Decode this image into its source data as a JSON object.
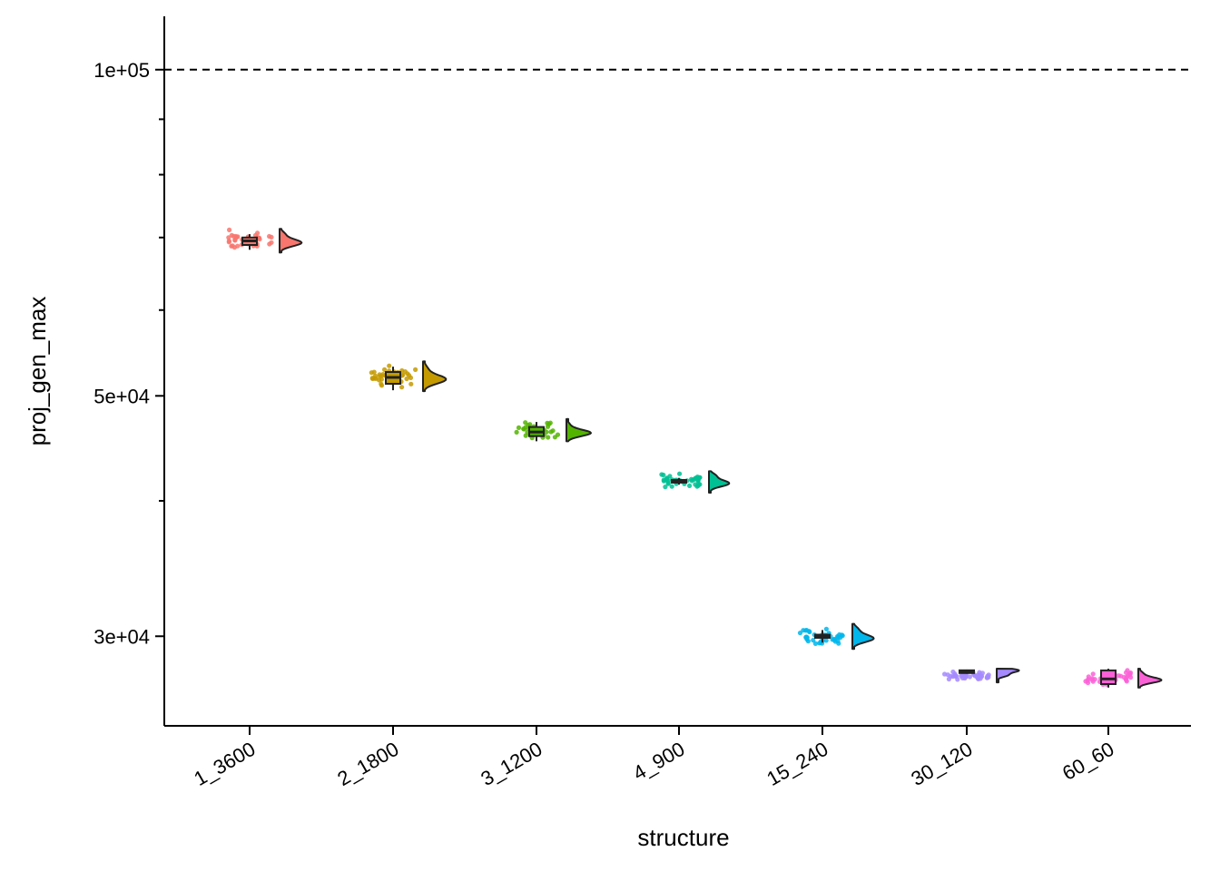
{
  "chart_data": {
    "type": "raincloud",
    "xlabel": "structure",
    "ylabel": "proj_gen_max",
    "y_scale": "log",
    "ylim": [
      24800,
      112000
    ],
    "y_ticks": [
      {
        "value": 30000,
        "label": "3e+04"
      },
      {
        "value": 50000,
        "label": "5e+04"
      },
      {
        "value": 100000,
        "label": "1e+05"
      }
    ],
    "reference_line": {
      "value": 100000,
      "style": "dashed",
      "color": "#000000"
    },
    "grid": false,
    "legend": "none",
    "categories": [
      "1_3600",
      "2_1800",
      "3_1200",
      "4_900",
      "15_240",
      "30_120",
      "60_60"
    ],
    "colors": [
      "#F8766D",
      "#C49A00",
      "#53B400",
      "#00C094",
      "#00B6EB",
      "#A58AFF",
      "#FB61D7"
    ],
    "series": [
      {
        "category": "1_3600",
        "center": 69500,
        "q1": 68900,
        "q3": 70000,
        "whisker_low": 68200,
        "whisker_high": 70500,
        "spread_low": 67800,
        "spread_high": 71300
      },
      {
        "category": "2_1800",
        "center": 52000,
        "q1": 51300,
        "q3": 52600,
        "whisker_low": 50600,
        "whisker_high": 53200,
        "spread_low": 50500,
        "spread_high": 53800
      },
      {
        "category": "3_1200",
        "center": 46300,
        "q1": 45900,
        "q3": 46800,
        "whisker_low": 45400,
        "whisker_high": 47300,
        "spread_low": 45400,
        "spread_high": 47600
      },
      {
        "category": "4_900",
        "center": 41700,
        "q1": 41600,
        "q3": 41800,
        "whisker_low": 41400,
        "whisker_high": 42000,
        "spread_low": 40700,
        "spread_high": 42600
      },
      {
        "category": "15_240",
        "center": 30000,
        "q1": 29900,
        "q3": 30100,
        "whisker_low": 29600,
        "whisker_high": 30400,
        "spread_low": 29200,
        "spread_high": 30800
      },
      {
        "category": "30_120",
        "center": 27800,
        "q1": 27750,
        "q3": 27900,
        "whisker_low": 27700,
        "whisker_high": 27950,
        "spread_low": 27200,
        "spread_high": 28000
      },
      {
        "category": "60_60",
        "center": 27400,
        "q1": 27100,
        "q3": 27900,
        "whisker_low": 26900,
        "whisker_high": 28000,
        "spread_low": 26900,
        "spread_high": 28000
      }
    ]
  }
}
